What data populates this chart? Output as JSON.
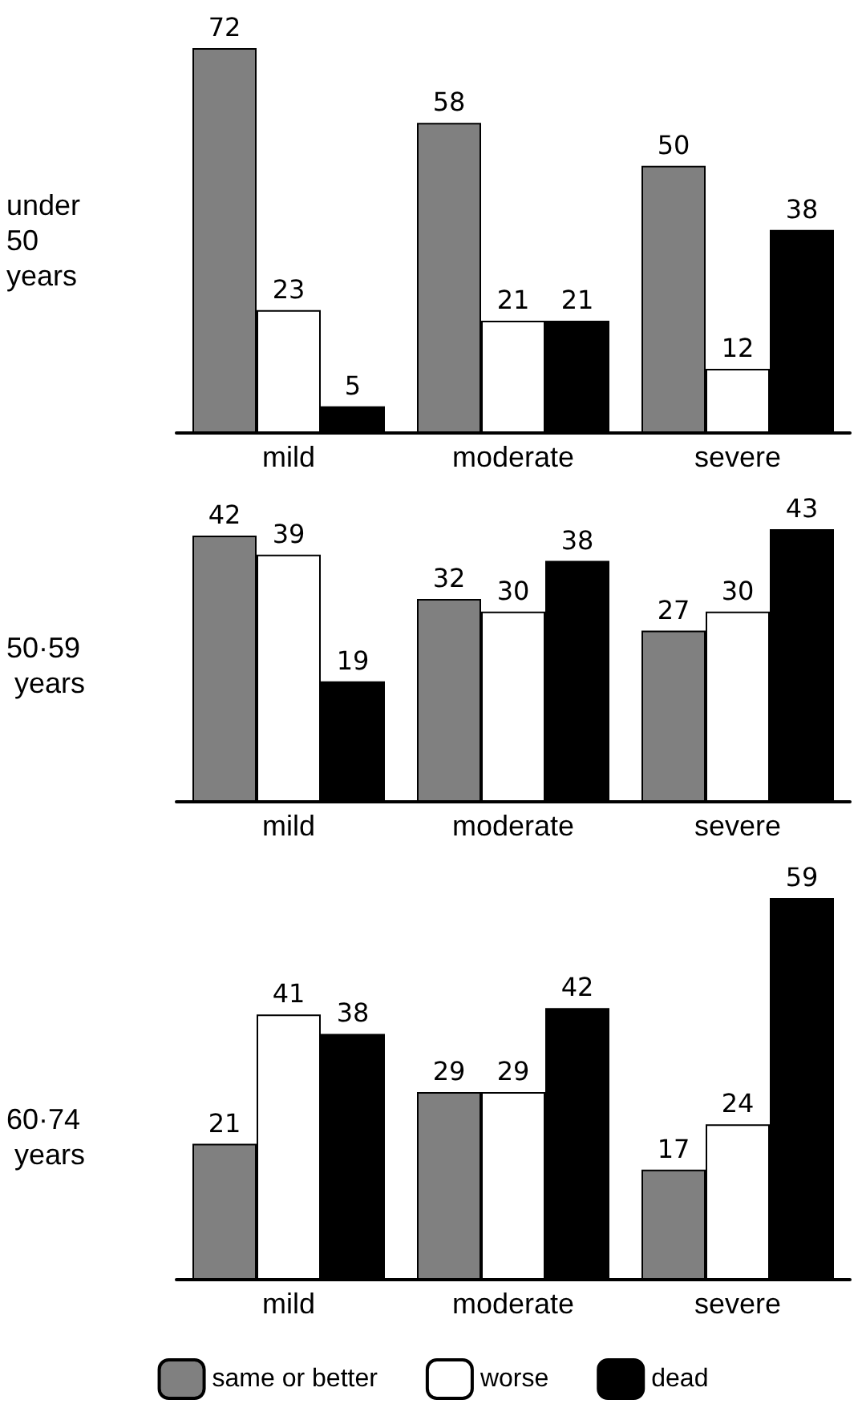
{
  "chart_data": [
    {
      "type": "bar",
      "ylabel": "under 50 years",
      "categories": [
        "mild",
        "moderate",
        "severe"
      ],
      "series": [
        {
          "color": "#808080",
          "values": [
            72,
            58,
            50
          ]
        },
        {
          "color": "#ffffff",
          "values": [
            23,
            21,
            12
          ]
        },
        {
          "color": "#000000",
          "values": [
            5,
            21,
            38
          ]
        }
      ],
      "data_labels": true,
      "grid": false,
      "legend": false
    },
    {
      "type": "bar",
      "ylabel": "50·59 years",
      "categories": [
        "mild",
        "moderate",
        "severe"
      ],
      "series": [
        {
          "color": "#808080",
          "values": [
            42,
            32,
            27
          ]
        },
        {
          "color": "#ffffff",
          "values": [
            39,
            30,
            30
          ]
        },
        {
          "color": "#000000",
          "values": [
            19,
            38,
            43
          ]
        }
      ],
      "data_labels": true,
      "grid": false,
      "legend": false
    },
    {
      "type": "bar",
      "ylabel": "60·74 years",
      "categories": [
        "mild",
        "moderate",
        "severe"
      ],
      "series": [
        {
          "name": "same or better",
          "color": "#808080",
          "values": [
            21,
            29,
            17
          ]
        },
        {
          "name": "worse",
          "color": "#ffffff",
          "values": [
            41,
            29,
            24
          ]
        },
        {
          "name": "dead",
          "color": "#000000",
          "values": [
            38,
            42,
            59
          ]
        }
      ],
      "data_labels": true,
      "grid": false,
      "legend": "bottom"
    }
  ]
}
